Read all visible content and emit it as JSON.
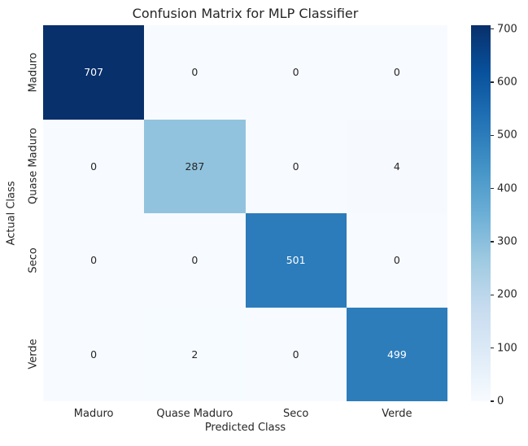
{
  "chart_data": {
    "type": "heatmap",
    "title": "Confusion Matrix for MLP Classifier",
    "xlabel": "Predicted Class",
    "ylabel": "Actual Class",
    "x_categories": [
      "Maduro",
      "Quase Maduro",
      "Seco",
      "Verde"
    ],
    "y_categories": [
      "Maduro",
      "Quase Maduro",
      "Seco",
      "Verde"
    ],
    "matrix": [
      [
        707,
        0,
        0,
        0
      ],
      [
        0,
        287,
        0,
        4
      ],
      [
        0,
        0,
        501,
        0
      ],
      [
        0,
        2,
        0,
        499
      ]
    ],
    "vmin": 0,
    "vmax": 707,
    "colormap": "Blues",
    "colormap_stops": [
      "#f7fbff",
      "#deebf7",
      "#c6dbef",
      "#9ecae1",
      "#6baed6",
      "#4292c6",
      "#2171b5",
      "#08519c",
      "#08306b"
    ],
    "colorbar_ticks": [
      0,
      100,
      200,
      300,
      400,
      500,
      600,
      700
    ],
    "colorbar_position": "right",
    "grid": false,
    "annotations_shown": true,
    "colors": {
      "background": "#ffffff",
      "text": "#262626",
      "annotation_on_dark": "#ffffff",
      "annotation_on_light": "#262626",
      "max_cell": "#08306b",
      "min_cell": "#f7fbff"
    }
  }
}
